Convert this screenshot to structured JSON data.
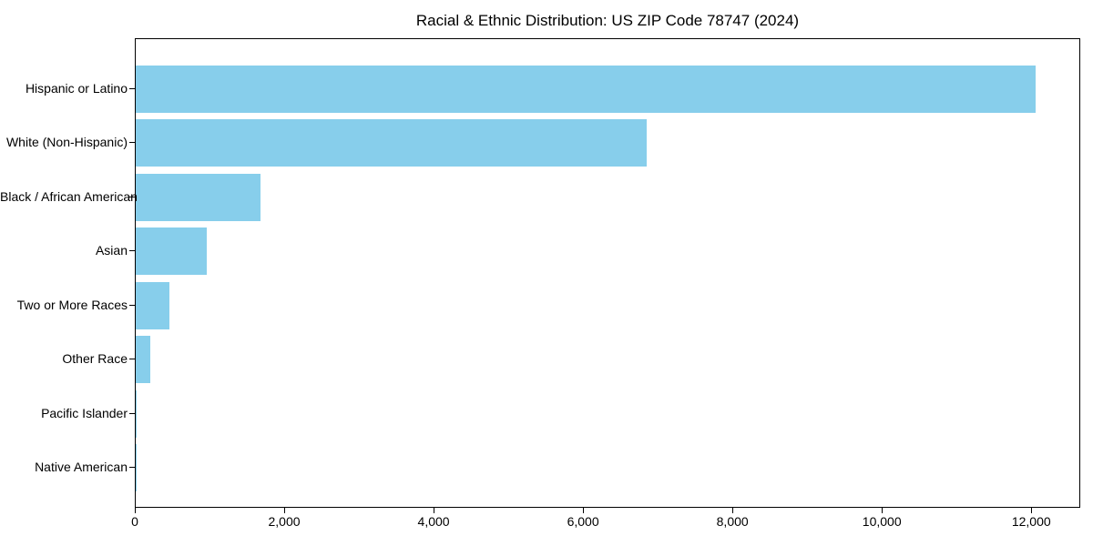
{
  "chart_data": {
    "type": "bar",
    "orientation": "horizontal",
    "title": "Racial & Ethnic Distribution: US ZIP Code 78747 (2024)",
    "categories": [
      "Hispanic or Latino",
      "White (Non-Hispanic)",
      "Black / African American",
      "Asian",
      "Two or More Races",
      "Other Race",
      "Pacific Islander",
      "Native American"
    ],
    "values": [
      12050,
      6840,
      1665,
      955,
      455,
      200,
      15,
      10
    ],
    "xlabel": "",
    "ylabel": "",
    "xlim": [
      0,
      12655
    ],
    "x_ticks": [
      0,
      2000,
      4000,
      6000,
      8000,
      10000,
      12000
    ],
    "x_tick_labels": [
      "0",
      "2,000",
      "4,000",
      "6,000",
      "8,000",
      "10,000",
      "12,000"
    ],
    "bar_color": "#87CEEB",
    "grid": false,
    "legend_position": "none"
  }
}
